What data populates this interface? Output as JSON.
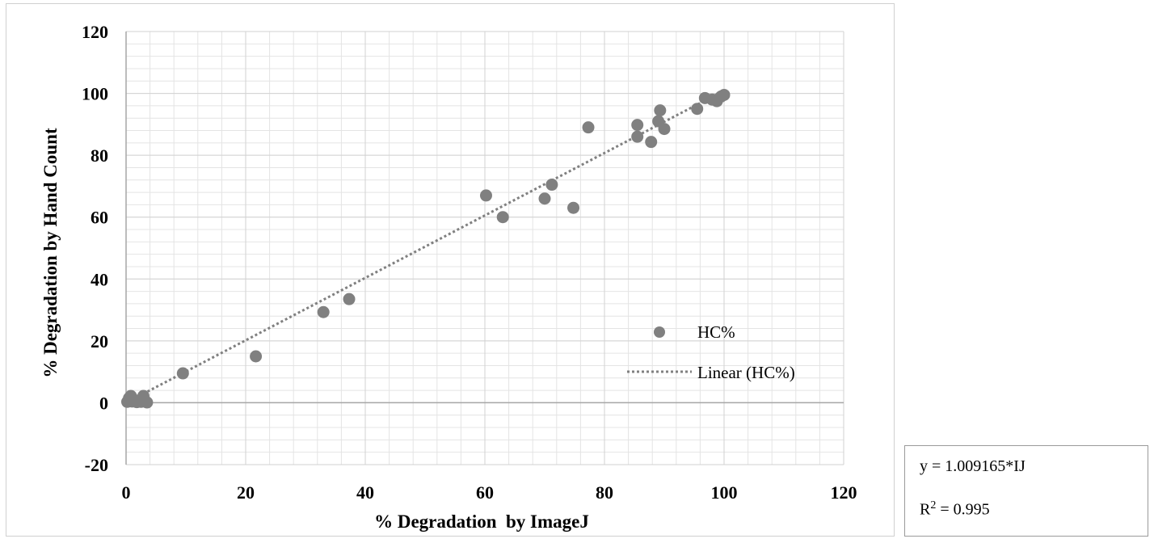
{
  "chart_data": {
    "type": "scatter",
    "xlabel": "% Degradation  by ImageJ",
    "ylabel": "% Degradation by Hand Count",
    "xlim": [
      0,
      120
    ],
    "ylim": [
      -20,
      120
    ],
    "xticks": [
      0,
      20,
      40,
      60,
      80,
      100,
      120
    ],
    "yticks": [
      -20,
      0,
      20,
      40,
      60,
      80,
      100,
      120
    ],
    "minor_grid": true,
    "legend_position": "inside-bottom-right",
    "series": [
      {
        "name": "HC%",
        "color": "#808080",
        "marker": "circle",
        "points": [
          {
            "x": 0.2,
            "y": 0.3
          },
          {
            "x": 0.5,
            "y": 1.5
          },
          {
            "x": 0.8,
            "y": 2.2
          },
          {
            "x": 1.0,
            "y": 0.4
          },
          {
            "x": 1.3,
            "y": 1.0
          },
          {
            "x": 1.8,
            "y": 0.2
          },
          {
            "x": 2.5,
            "y": 0.3
          },
          {
            "x": 2.9,
            "y": 2.2
          },
          {
            "x": 3.5,
            "y": 0.1
          },
          {
            "x": 9.5,
            "y": 9.5
          },
          {
            "x": 21.7,
            "y": 15.0
          },
          {
            "x": 33.0,
            "y": 29.3
          },
          {
            "x": 37.3,
            "y": 33.5
          },
          {
            "x": 60.2,
            "y": 67.0
          },
          {
            "x": 63.0,
            "y": 60.0
          },
          {
            "x": 70.0,
            "y": 66.0
          },
          {
            "x": 71.2,
            "y": 70.5
          },
          {
            "x": 74.8,
            "y": 63.0
          },
          {
            "x": 77.3,
            "y": 89.0
          },
          {
            "x": 85.5,
            "y": 89.8
          },
          {
            "x": 85.5,
            "y": 86.0
          },
          {
            "x": 87.8,
            "y": 84.3
          },
          {
            "x": 89.0,
            "y": 91.0
          },
          {
            "x": 89.3,
            "y": 94.5
          },
          {
            "x": 90.0,
            "y": 88.5
          },
          {
            "x": 95.5,
            "y": 95.0
          },
          {
            "x": 96.8,
            "y": 98.5
          },
          {
            "x": 98.0,
            "y": 98.0
          },
          {
            "x": 98.8,
            "y": 97.5
          },
          {
            "x": 99.5,
            "y": 99.0
          },
          {
            "x": 100.0,
            "y": 99.5
          }
        ]
      },
      {
        "name": "Linear (HC%)",
        "type": "trendline",
        "color": "#808080",
        "dash": "dotted",
        "slope": 1.009165,
        "intercept": 0,
        "x_range": [
          0,
          100
        ]
      }
    ],
    "annotation": {
      "equation": "y = 1.009165*IJ",
      "r2_label": "R",
      "r2_sup": "2",
      "r2_value": "= 0.995"
    }
  }
}
